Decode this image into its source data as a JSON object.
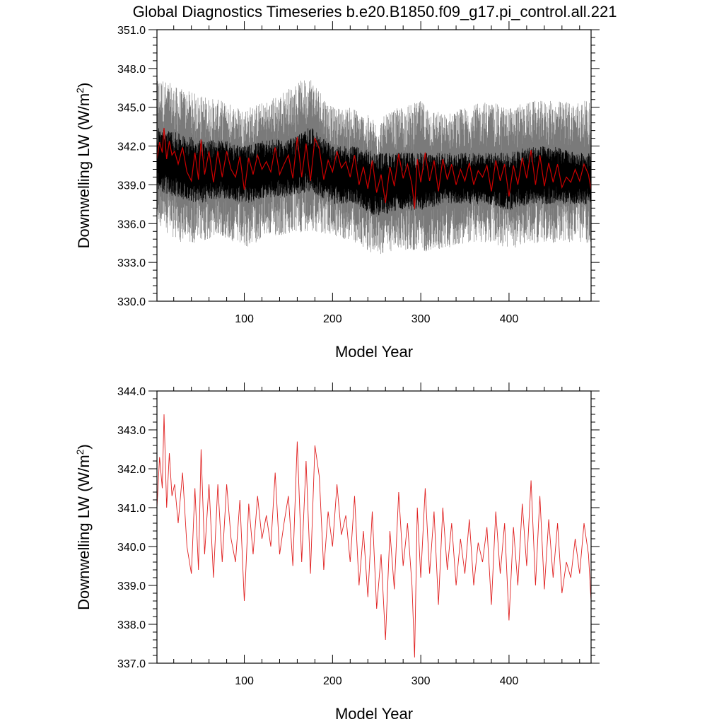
{
  "figure": {
    "title": "Global Diagnostics Timeseries b.e20.B1850.f09_g17.pi_control.all.221"
  },
  "chart_data": [
    {
      "type": "line",
      "panel": "top",
      "title": "",
      "xlabel": "Model Year",
      "ylabel": "Downwelling LW (W/m²)",
      "ylabel_base": "Downwelling LW (W/m",
      "ylabel_sup": "2",
      "ylabel_close": ")",
      "xlim": [
        1,
        493
      ],
      "ylim": [
        330,
        351
      ],
      "x_ticks": [
        100,
        200,
        300,
        400
      ],
      "x_tick_labels": [
        "100",
        "200",
        "300",
        "400"
      ],
      "y_ticks": [
        330,
        333,
        336,
        339,
        342,
        345,
        348,
        351
      ],
      "y_tick_labels": [
        "330.0",
        "333.0",
        "336.0",
        "339.0",
        "342.0",
        "345.0",
        "348.0",
        "351.0"
      ],
      "grid": false,
      "legend": "none",
      "series": [
        {
          "role": "monthly-envelope",
          "color": "#7a7a7a",
          "x": [
            1,
            25,
            50,
            75,
            100,
            125,
            150,
            175,
            200,
            225,
            250,
            275,
            300,
            325,
            350,
            375,
            400,
            425,
            450,
            475,
            493
          ],
          "min": [
            336.0,
            334.5,
            334.5,
            335.0,
            334.0,
            335.0,
            335.0,
            335.5,
            335.0,
            334.5,
            333.5,
            334.0,
            333.8,
            334.0,
            334.5,
            334.5,
            334.0,
            334.5,
            334.5,
            334.5,
            334.5
          ],
          "max": [
            347.5,
            346.5,
            346.0,
            345.5,
            345.0,
            345.5,
            346.5,
            347.5,
            345.0,
            345.0,
            344.0,
            345.0,
            345.5,
            344.5,
            345.0,
            345.5,
            345.0,
            345.5,
            345.5,
            345.5,
            345.5
          ]
        },
        {
          "role": "seasonal-band",
          "color": "#000000",
          "x": [
            1,
            25,
            50,
            75,
            100,
            125,
            150,
            175,
            200,
            225,
            250,
            275,
            300,
            325,
            350,
            375,
            400,
            425,
            450,
            475,
            493
          ],
          "min": [
            338.5,
            338.0,
            337.5,
            338.0,
            337.5,
            338.0,
            338.0,
            338.5,
            337.5,
            337.5,
            336.5,
            337.0,
            337.0,
            337.5,
            337.5,
            337.5,
            337.0,
            337.5,
            337.5,
            337.5,
            337.5
          ],
          "max": [
            343.5,
            343.0,
            342.5,
            342.5,
            342.0,
            342.5,
            342.5,
            343.5,
            342.0,
            342.0,
            341.5,
            341.5,
            341.5,
            341.5,
            341.5,
            341.5,
            341.5,
            342.0,
            342.0,
            341.5,
            341.5
          ]
        },
        {
          "role": "annual-mean",
          "color": "#cc0000",
          "ref": "annual"
        }
      ]
    },
    {
      "type": "line",
      "panel": "bottom",
      "title": "",
      "xlabel": "Model Year",
      "ylabel": "Downwelling LW (W/m²)",
      "ylabel_base": "Downwelling LW (W/m",
      "ylabel_sup": "2",
      "ylabel_close": ")",
      "xlim": [
        1,
        493
      ],
      "ylim": [
        337,
        344
      ],
      "x_ticks": [
        100,
        200,
        300,
        400
      ],
      "x_tick_labels": [
        "100",
        "200",
        "300",
        "400"
      ],
      "y_ticks": [
        337,
        338,
        339,
        340,
        341,
        342,
        343,
        344
      ],
      "y_tick_labels": [
        "337.0",
        "338.0",
        "339.0",
        "340.0",
        "341.0",
        "342.0",
        "343.0",
        "344.0"
      ],
      "grid": false,
      "legend": "none",
      "series": [
        {
          "role": "annual-mean",
          "color": "#e02020",
          "ref": "annual"
        }
      ]
    }
  ],
  "annual": {
    "color": "#e02020",
    "x": [
      1,
      4,
      7,
      9,
      12,
      15,
      18,
      21,
      25,
      30,
      35,
      40,
      44,
      48,
      51,
      55,
      60,
      65,
      70,
      75,
      80,
      85,
      90,
      95,
      100,
      101,
      105,
      110,
      115,
      120,
      125,
      130,
      135,
      140,
      145,
      150,
      155,
      160,
      165,
      170,
      175,
      180,
      185,
      190,
      195,
      200,
      205,
      210,
      215,
      220,
      225,
      230,
      235,
      240,
      245,
      250,
      255,
      260,
      265,
      270,
      275,
      280,
      285,
      290,
      293,
      296,
      300,
      305,
      310,
      315,
      320,
      325,
      330,
      335,
      340,
      345,
      350,
      355,
      360,
      365,
      370,
      375,
      380,
      385,
      390,
      395,
      400,
      405,
      410,
      415,
      420,
      425,
      430,
      435,
      440,
      445,
      450,
      455,
      460,
      465,
      470,
      475,
      480,
      485,
      490,
      493
    ],
    "y": [
      341.0,
      342.3,
      341.5,
      343.4,
      341.0,
      342.4,
      341.3,
      341.6,
      340.6,
      341.9,
      340.0,
      339.3,
      341.5,
      339.4,
      342.5,
      339.8,
      341.6,
      339.2,
      341.6,
      339.6,
      341.6,
      340.2,
      339.6,
      341.2,
      338.6,
      339.0,
      341.1,
      339.8,
      341.3,
      340.2,
      340.8,
      340.0,
      341.9,
      339.8,
      340.6,
      341.3,
      339.5,
      342.7,
      339.6,
      342.2,
      339.3,
      342.6,
      341.8,
      339.4,
      340.9,
      340.0,
      341.6,
      340.3,
      340.8,
      339.6,
      341.3,
      339.0,
      340.4,
      338.7,
      340.9,
      338.4,
      339.8,
      337.6,
      340.4,
      338.9,
      341.4,
      339.5,
      340.6,
      339.0,
      337.15,
      341.0,
      339.2,
      341.5,
      339.3,
      340.9,
      338.5,
      341.0,
      339.4,
      340.6,
      339.0,
      340.2,
      339.3,
      340.7,
      339.0,
      340.1,
      339.6,
      340.5,
      338.5,
      340.9,
      339.3,
      340.6,
      338.1,
      340.5,
      339.0,
      341.1,
      339.5,
      341.7,
      339.0,
      341.3,
      338.9,
      340.7,
      339.2,
      340.6,
      338.8,
      339.6,
      339.2,
      340.2,
      339.3,
      340.6,
      339.8,
      338.6
    ]
  }
}
